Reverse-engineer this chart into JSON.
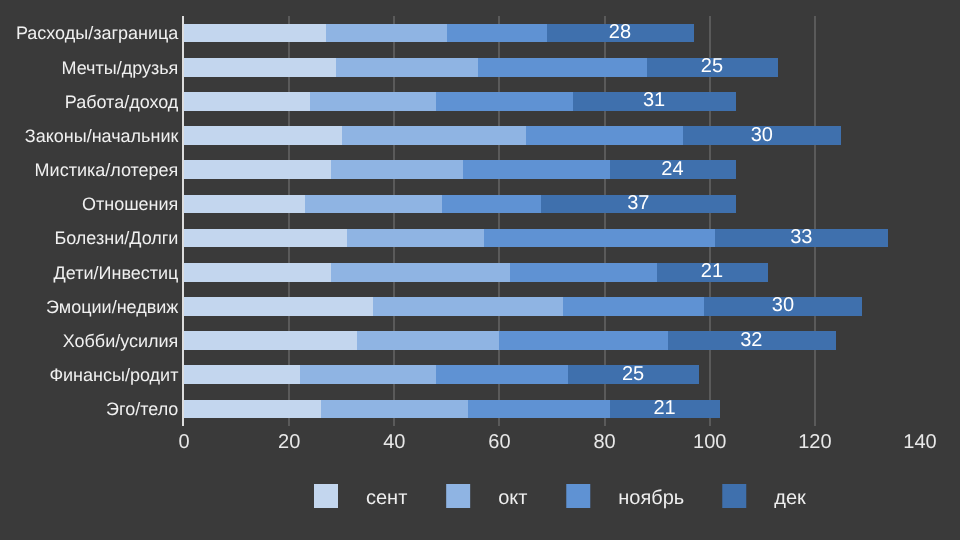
{
  "chart_data": {
    "type": "bar",
    "orientation": "horizontal",
    "stacked": true,
    "categories": [
      "Расходы/заграница",
      "Мечты/друзья",
      "Работа/доход",
      "Законы/начальник",
      "Мистика/лотерея",
      "Отношения",
      "Болезни/Долги",
      "Дети/Инвестиц",
      "Эмоции/недвиж",
      "Хобби/усилия",
      "Финансы/родит",
      "Эго/тело"
    ],
    "series": [
      {
        "name": "сент",
        "color": "#c3d6ee",
        "values": [
          27,
          29,
          24,
          30,
          28,
          23,
          31,
          28,
          36,
          33,
          22,
          26
        ]
      },
      {
        "name": "окт",
        "color": "#8fb4e3",
        "values": [
          23,
          27,
          24,
          35,
          25,
          26,
          26,
          34,
          36,
          27,
          26,
          28
        ]
      },
      {
        "name": "ноябрь",
        "color": "#5f92d3",
        "values": [
          19,
          32,
          26,
          30,
          28,
          19,
          44,
          28,
          27,
          32,
          25,
          27
        ]
      },
      {
        "name": "дек",
        "color": "#3f70ad",
        "values": [
          28,
          25,
          31,
          30,
          24,
          37,
          33,
          21,
          30,
          32,
          25,
          21
        ],
        "value_labels": [
          "28",
          "25",
          "31",
          "30",
          "24",
          "37",
          "33",
          "21",
          "30",
          "32",
          "25",
          "21"
        ]
      }
    ],
    "xlim": [
      0,
      140
    ],
    "xticks": [
      0,
      20,
      40,
      60,
      80,
      100,
      120,
      140
    ],
    "grid": "x",
    "legend": "bottom"
  }
}
